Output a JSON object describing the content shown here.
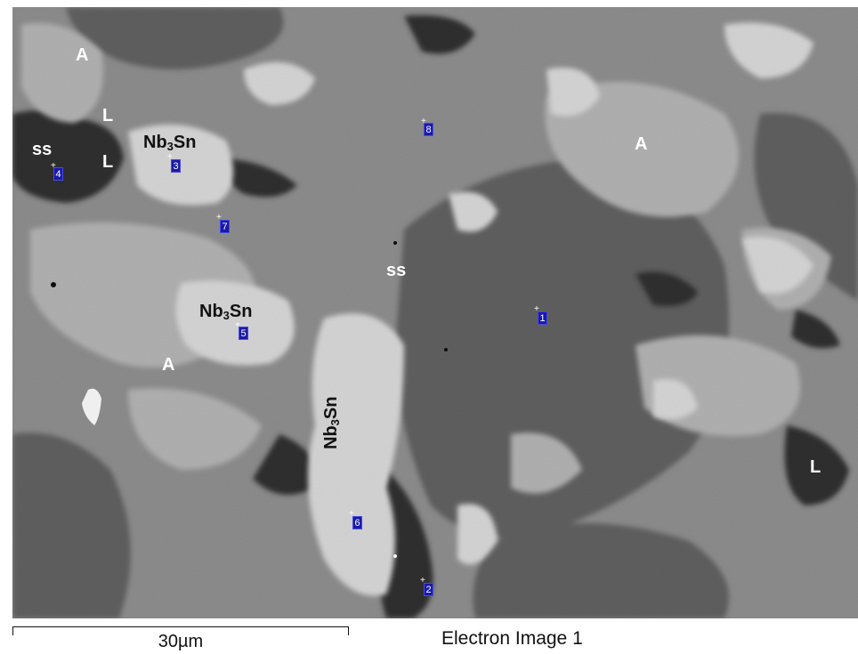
{
  "image": {
    "caption": "Electron Image 1",
    "scale_bar_label": "30µm"
  },
  "phase_labels": {
    "A": "A",
    "L": "L",
    "ss": "ss",
    "nb_main": "Nb",
    "nb_sub": "3",
    "nb_tail": "Sn"
  },
  "spectrum_spots": [
    "1",
    "2",
    "3",
    "4",
    "5",
    "6",
    "7",
    "8"
  ],
  "colors": {
    "spot_marker": "#1a1aa8",
    "label_light": "#ffffff",
    "label_dark": "#111111"
  }
}
